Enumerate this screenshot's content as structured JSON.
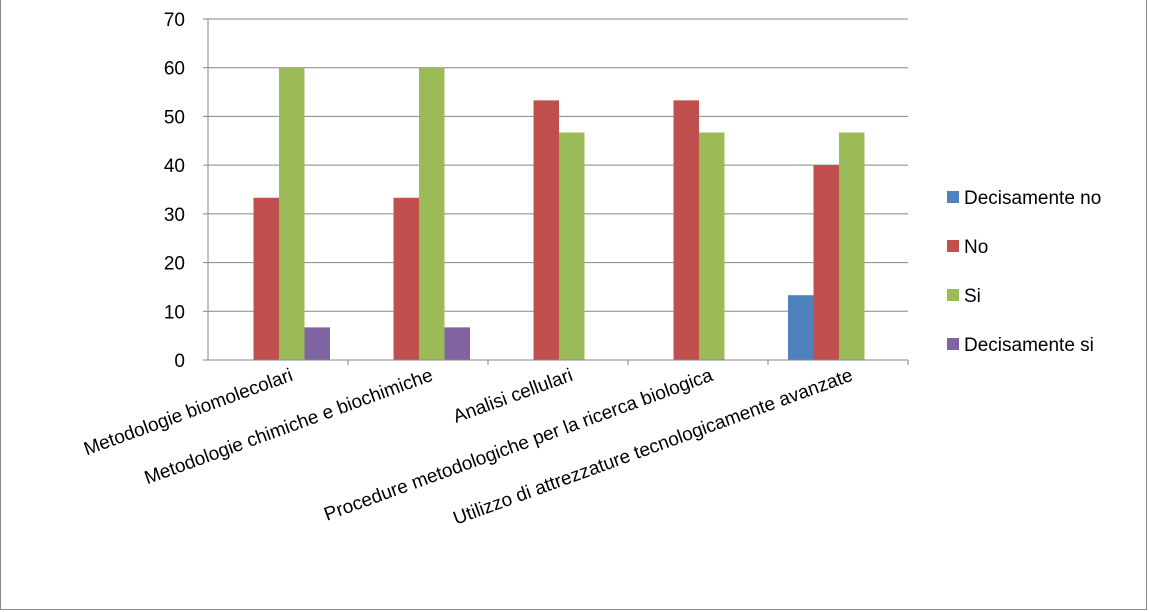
{
  "chart_data": {
    "type": "bar",
    "categories": [
      "Metodologie biomolecolari",
      "Metodologie chimiche e biochimiche",
      "Analisi cellulari",
      "Procedure metodologiche per la ricerca biologica",
      "Utilizzo di attrezzature tecnologicamente avanzate"
    ],
    "series": [
      {
        "name": "Decisamente no",
        "color": "#4F81BD",
        "values": [
          0,
          0,
          0,
          0,
          13.3
        ]
      },
      {
        "name": "No",
        "color": "#C0504D",
        "values": [
          33.3,
          33.3,
          53.3,
          53.3,
          40
        ]
      },
      {
        "name": "Si",
        "color": "#9BBB59",
        "values": [
          60,
          60,
          46.7,
          46.7,
          46.7
        ]
      },
      {
        "name": "Decisamente si",
        "color": "#8064A2",
        "values": [
          6.7,
          6.7,
          0,
          0,
          0
        ]
      }
    ],
    "yticks": [
      "0",
      "10",
      "20",
      "30",
      "40",
      "50",
      "60",
      "70"
    ],
    "ylim": [
      0,
      70
    ],
    "grid": true,
    "legend": "right"
  }
}
